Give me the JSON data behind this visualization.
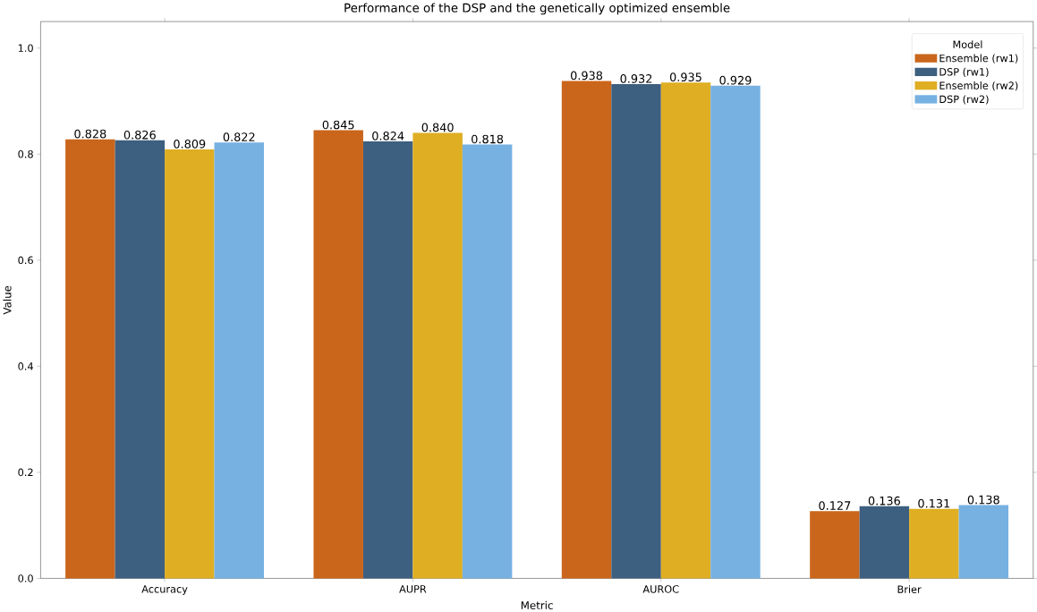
{
  "chart_data": {
    "type": "bar",
    "title": "Performance of the DSP and the genetically optimized ensemble",
    "xlabel": "Metric",
    "ylabel": "Value",
    "legend_title": "Model",
    "categories": [
      "Accuracy",
      "AUPR",
      "AUROC",
      "Brier"
    ],
    "series": [
      {
        "name": "Ensemble (rw1)",
        "color": "#ca661b",
        "values": [
          0.828,
          0.845,
          0.938,
          0.127
        ],
        "value_labels": [
          "0.828",
          "0.845",
          "0.938",
          "0.127"
        ]
      },
      {
        "name": "DSP (rw1)",
        "color": "#3d5f80",
        "values": [
          0.826,
          0.824,
          0.932,
          0.136
        ],
        "value_labels": [
          "0.826",
          "0.824",
          "0.932",
          "0.136"
        ]
      },
      {
        "name": "Ensemble (rw2)",
        "color": "#dfae22",
        "values": [
          0.809,
          0.84,
          0.935,
          0.131
        ],
        "value_labels": [
          "0.809",
          "0.840",
          "0.935",
          "0.131"
        ]
      },
      {
        "name": "DSP (rw2)",
        "color": "#76b1e2",
        "values": [
          0.822,
          0.818,
          0.929,
          0.138
        ],
        "value_labels": [
          "0.822",
          "0.818",
          "0.929",
          "0.138"
        ]
      }
    ],
    "ylim": [
      0,
      1.05
    ],
    "yticks": [
      {
        "value": 0,
        "label": "0.0"
      },
      {
        "value": 0.2,
        "label": "0.2"
      },
      {
        "value": 0.4,
        "label": "0.4"
      },
      {
        "value": 0.6,
        "label": "0.6"
      },
      {
        "value": 0.8,
        "label": "0.8"
      },
      {
        "value": 1.0,
        "label": "1.0"
      }
    ],
    "legend": "top right",
    "grid": false
  }
}
